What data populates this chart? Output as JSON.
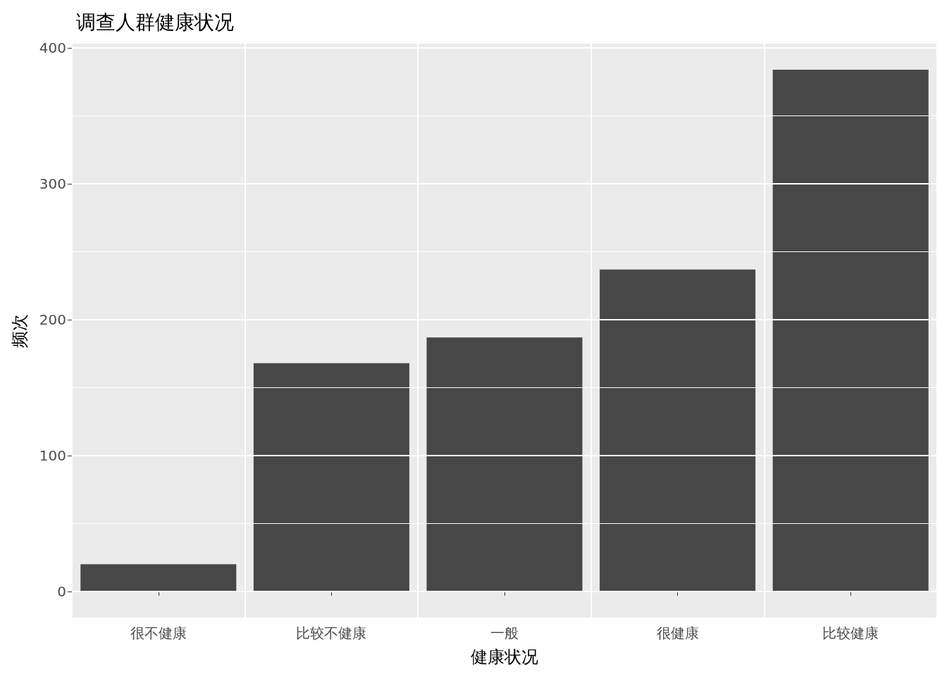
{
  "chart_data": {
    "type": "bar",
    "title": "调查人群健康状况",
    "xlabel": "健康状况",
    "ylabel": "频次",
    "categories": [
      "很不健康",
      "比较不健康",
      "一般",
      "很健康",
      "比较健康"
    ],
    "values": [
      20,
      168,
      187,
      237,
      384
    ],
    "color": "#474747",
    "ylim": [
      -19.2,
      403.2
    ],
    "yticks": [
      0,
      100,
      200,
      300,
      400
    ],
    "grid": true
  }
}
